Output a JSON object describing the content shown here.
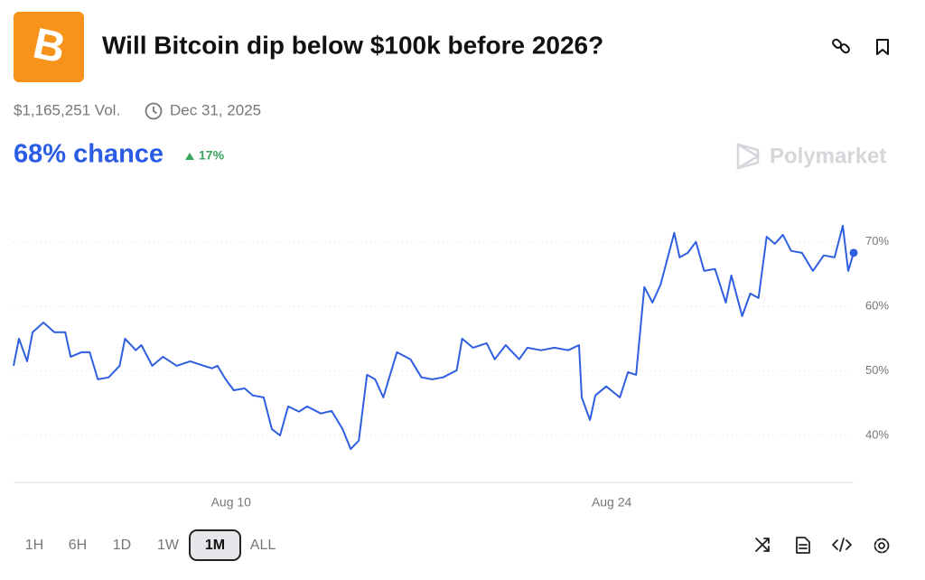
{
  "header": {
    "title": "Will Bitcoin dip below $100k before 2026?",
    "volume": "$1,165,251 Vol.",
    "end_date": "Dec 31, 2025"
  },
  "chance": {
    "label": "68% chance",
    "change": "17%"
  },
  "brand": "Polymarket",
  "chart_data": {
    "type": "line",
    "x": [
      2.0,
      2.2,
      2.5,
      2.7,
      3.1,
      3.5,
      3.9,
      4.1,
      4.5,
      4.8,
      5.1,
      5.5,
      5.9,
      6.1,
      6.5,
      6.7,
      7.1,
      7.5,
      8.0,
      8.5,
      9.0,
      9.3,
      9.5,
      9.8,
      10.1,
      10.5,
      10.8,
      11.2,
      11.5,
      11.8,
      12.1,
      12.5,
      12.8,
      13.3,
      13.7,
      14.1,
      14.4,
      14.7,
      15.0,
      15.3,
      15.6,
      16.1,
      16.6,
      17.0,
      17.4,
      17.8,
      18.3,
      18.5,
      18.9,
      19.4,
      19.7,
      20.1,
      20.6,
      20.9,
      21.4,
      21.9,
      22.4,
      22.8,
      22.9,
      23.2,
      23.4,
      23.8,
      24.3,
      24.6,
      24.9,
      25.2,
      25.5,
      25.8,
      26.3,
      26.5,
      26.8,
      27.1,
      27.4,
      27.8,
      28.2,
      28.4,
      28.8,
      29.1,
      29.4,
      29.7,
      30.0,
      30.3,
      30.6,
      31.0,
      31.4,
      31.8,
      32.2,
      32.5,
      32.7,
      32.9
    ],
    "series": [
      {
        "color": "#2f5fe0",
        "values": [
          50.8,
          55.0,
          51.5,
          56.0,
          57.5,
          56.0,
          56.0,
          52.2,
          52.9,
          52.9,
          48.7,
          49.0,
          50.8,
          55.0,
          53.2,
          54.0,
          50.8,
          52.2,
          50.8,
          51.5,
          50.8,
          50.4,
          50.8,
          48.7,
          47.0,
          47.3,
          46.2,
          45.9,
          41.0,
          40.0,
          44.5,
          43.7,
          44.5,
          43.4,
          43.8,
          41.0,
          37.9,
          39.2,
          49.4,
          48.7,
          45.9,
          52.9,
          51.8,
          49.0,
          48.7,
          49.0,
          50.1,
          55.0,
          53.6,
          54.3,
          51.8,
          54.0,
          51.8,
          53.6,
          53.2,
          53.6,
          53.2,
          54.0,
          45.9,
          42.4,
          46.2,
          47.6,
          45.9,
          49.8,
          49.4,
          63.0,
          60.6,
          63.4,
          71.4,
          67.6,
          68.3,
          70.0,
          65.5,
          65.8,
          60.6,
          64.8,
          58.5,
          62.0,
          61.3,
          70.8,
          69.7,
          71.1,
          68.6,
          68.3,
          65.5,
          67.9,
          67.6,
          72.5,
          65.5,
          68.3
        ]
      }
    ],
    "xlim": [
      2.0,
      32.9
    ],
    "ylim": [
      33,
      75
    ],
    "xticks": [
      {
        "value": 10,
        "label": "Aug 10"
      },
      {
        "value": 24,
        "label": "Aug 24"
      }
    ],
    "yticks": [
      {
        "value": 40,
        "label": "40%"
      },
      {
        "value": 50,
        "label": "50%"
      },
      {
        "value": 60,
        "label": "60%"
      },
      {
        "value": 70,
        "label": "70%"
      }
    ],
    "grid": true
  },
  "timeframes": [
    "1H",
    "6H",
    "1D",
    "1W",
    "1M",
    "ALL"
  ],
  "selected_timeframe": 4
}
